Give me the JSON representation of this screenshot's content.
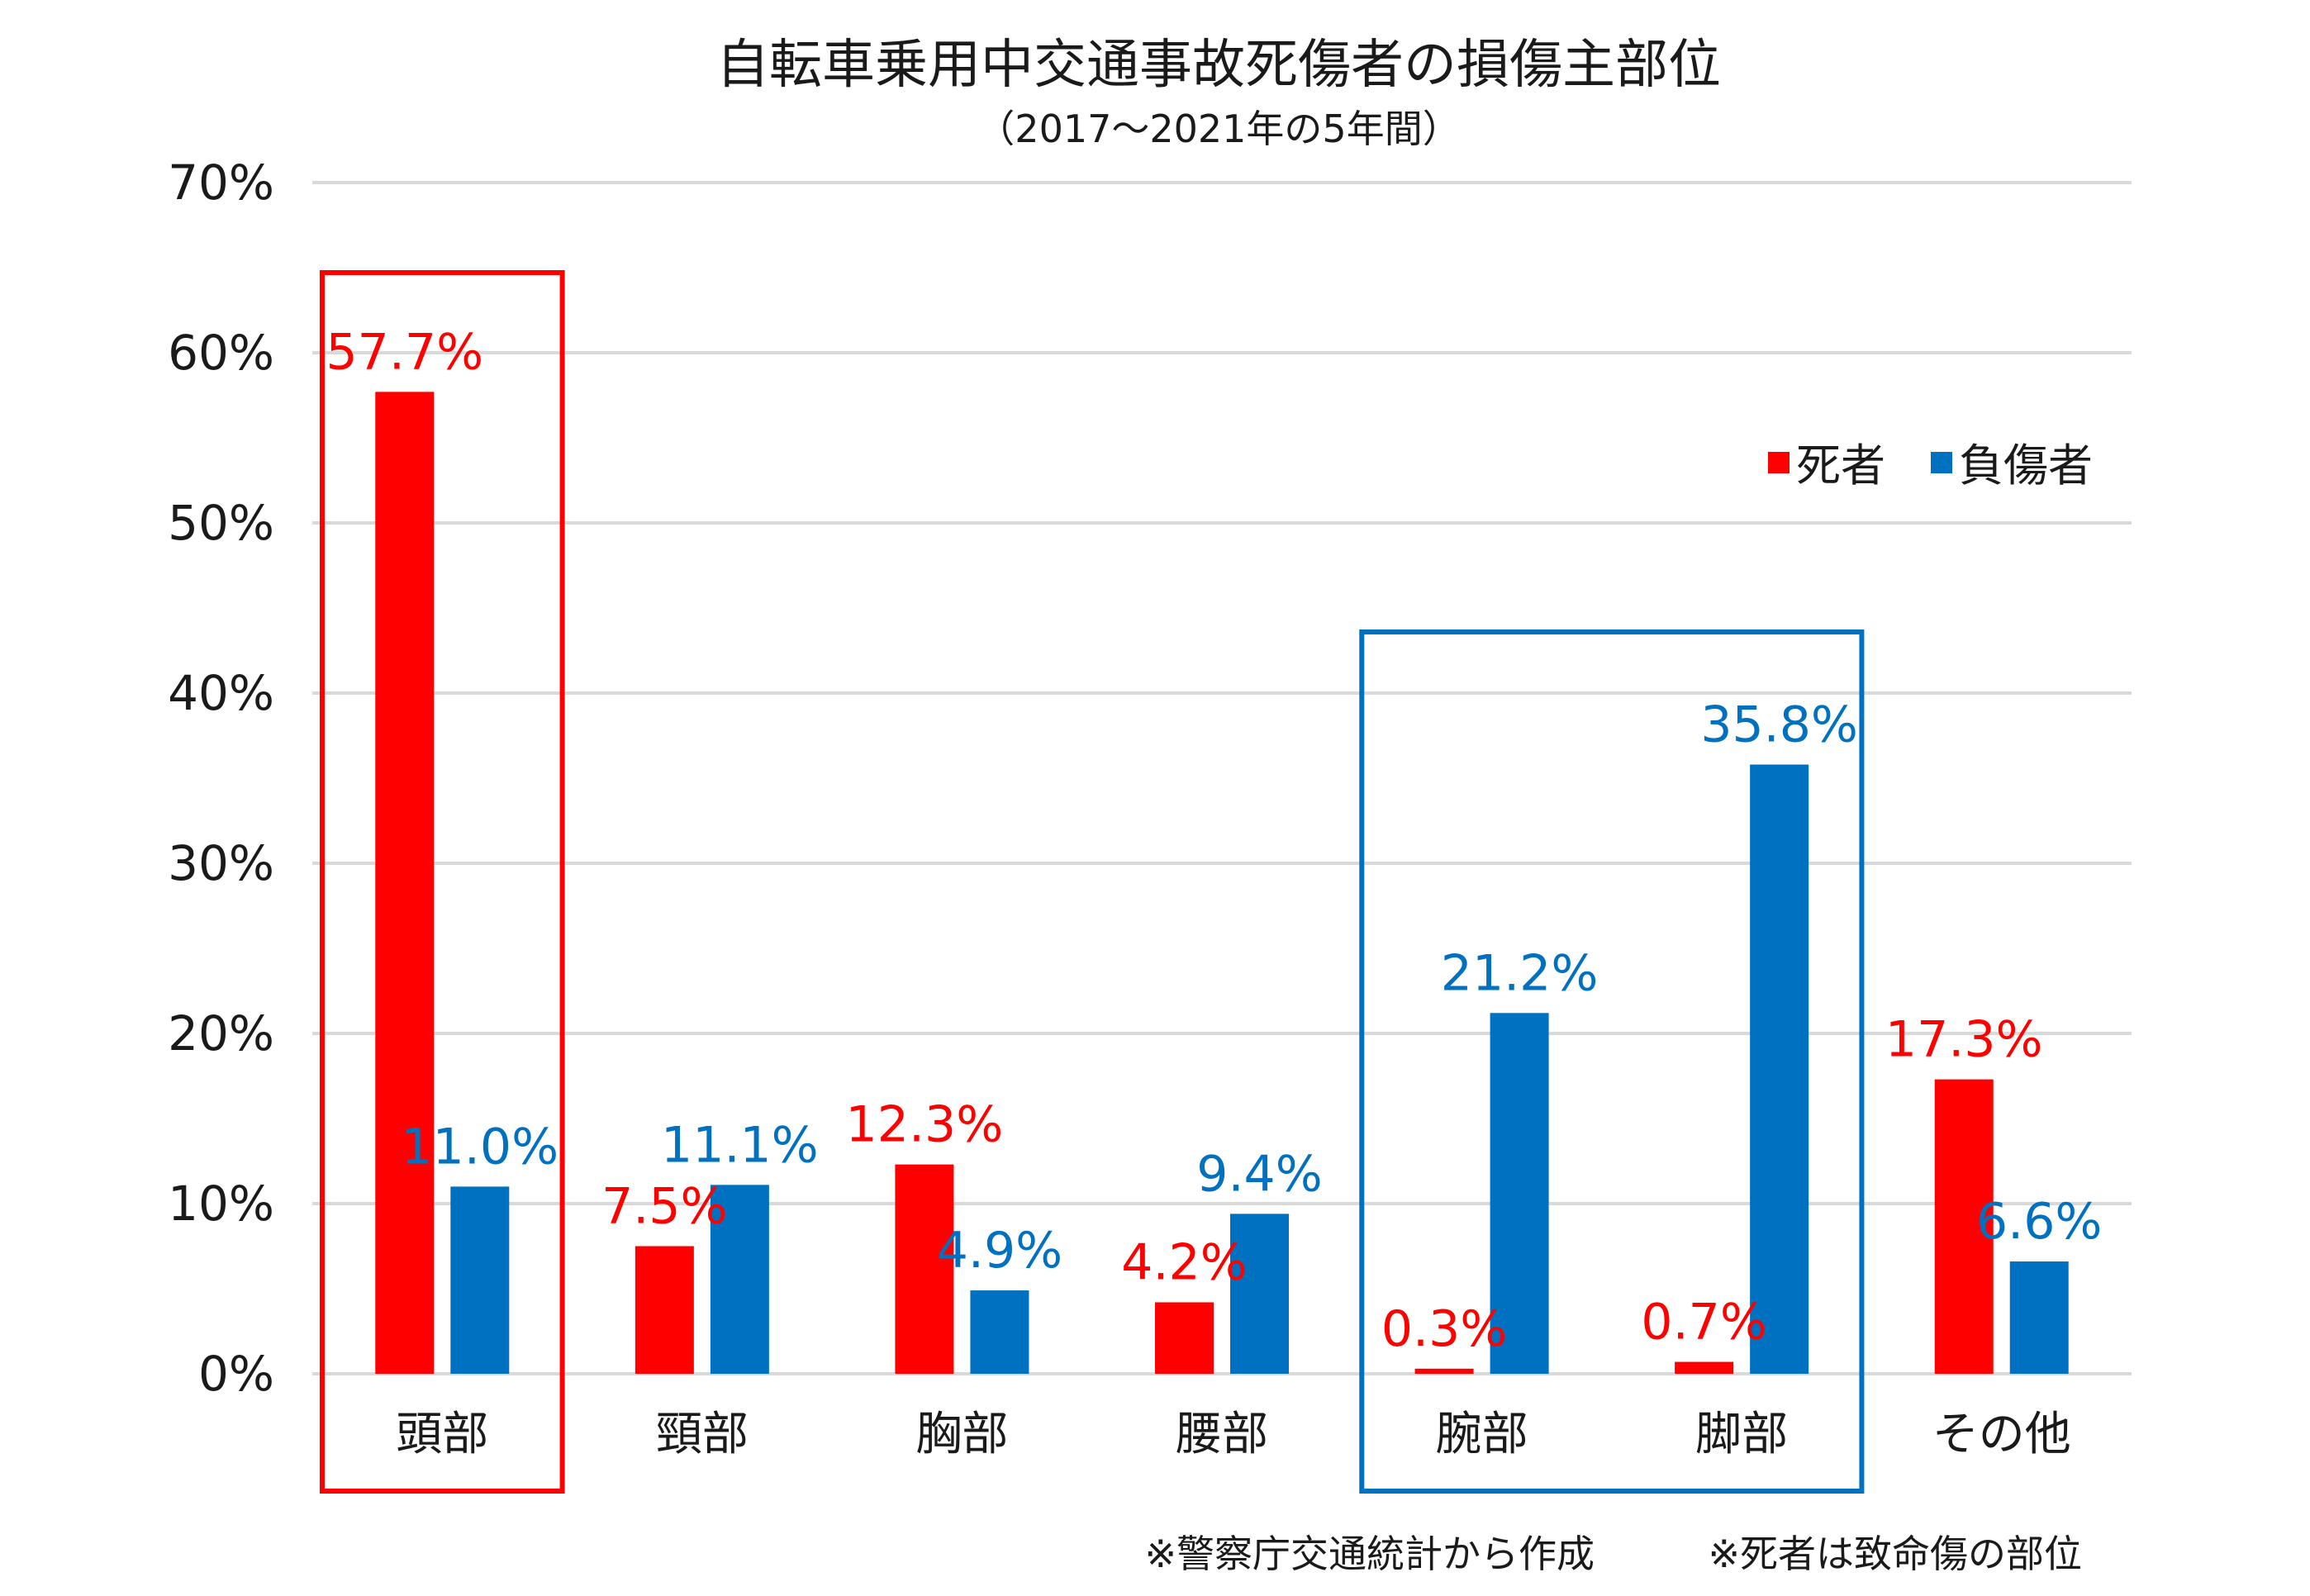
{
  "chart_data": {
    "type": "bar",
    "title": "自転車乗用中交通事故死傷者の損傷主部位",
    "subtitle": "（2017～2021年の5年間）",
    "xlabel": "",
    "ylabel": "",
    "ylim": [
      0,
      70
    ],
    "y_ticks": [
      "0%",
      "10%",
      "20%",
      "30%",
      "40%",
      "50%",
      "60%",
      "70%"
    ],
    "grid": true,
    "legend_position": "top-right",
    "categories": [
      "頭部",
      "頸部",
      "胸部",
      "腰部",
      "腕部",
      "脚部",
      "その他"
    ],
    "series": [
      {
        "name": "死者",
        "color": "#ff0000",
        "values": [
          57.7,
          7.5,
          12.3,
          4.2,
          0.3,
          0.7,
          17.3
        ],
        "labels": [
          "57.7%",
          "7.5%",
          "12.3%",
          "4.2%",
          "0.3%",
          "0.7%",
          "17.3%"
        ]
      },
      {
        "name": "負傷者",
        "color": "#0070c0",
        "values": [
          11.0,
          11.1,
          4.9,
          9.4,
          21.2,
          35.8,
          6.6
        ],
        "labels": [
          "11.0%",
          "11.1%",
          "4.9%",
          "9.4%",
          "21.2%",
          "35.8%",
          "6.6%"
        ]
      }
    ],
    "highlight_boxes": [
      {
        "categories": [
          "頭部"
        ],
        "color": "#ff0000"
      },
      {
        "categories": [
          "腕部",
          "脚部"
        ],
        "color": "#0070c0"
      }
    ],
    "notes": [
      "※警察庁交通統計から作成",
      "※死者は致命傷の部位"
    ]
  }
}
